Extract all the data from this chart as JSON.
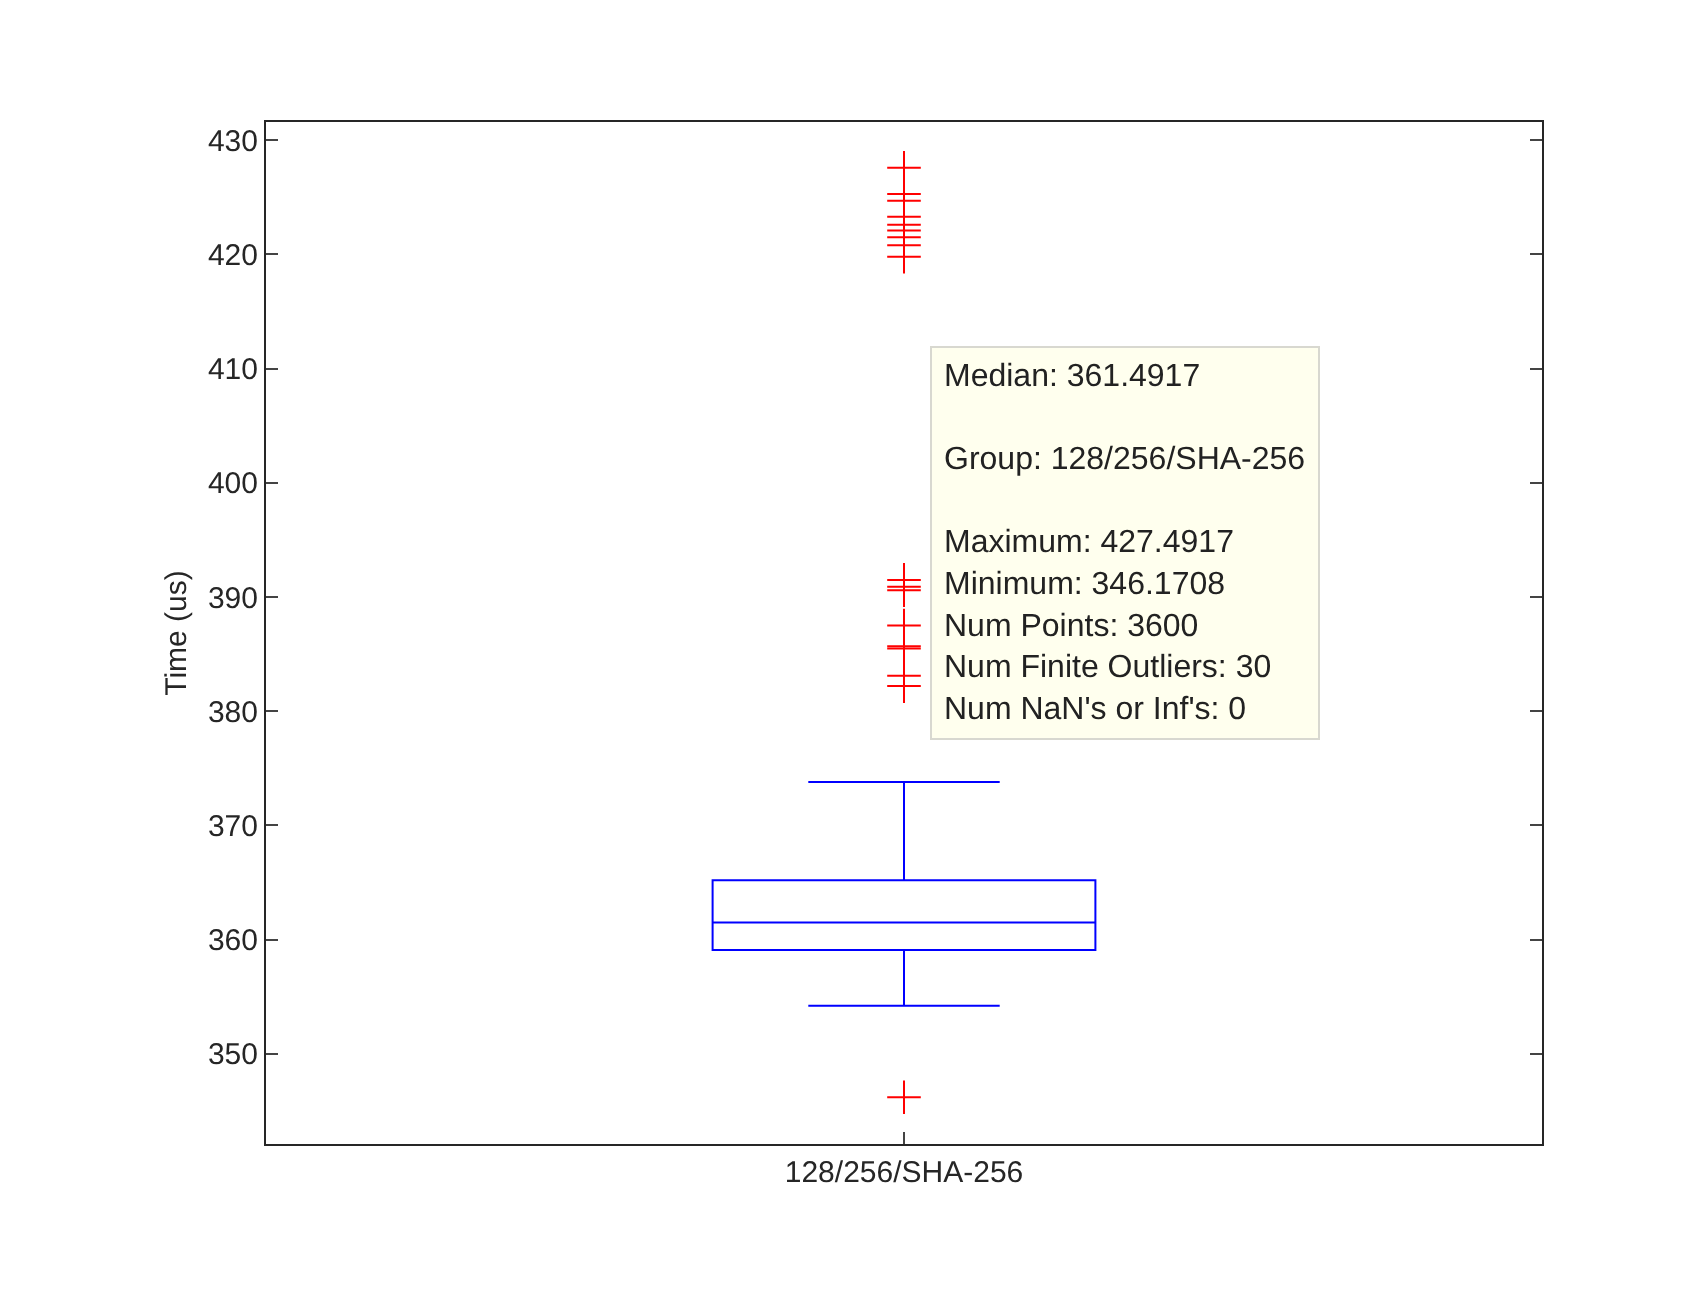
{
  "chart_data": {
    "type": "box",
    "ylabel": "Time (us)",
    "categories": [
      "128/256/SHA-256"
    ],
    "boxes": [
      {
        "low": 354.2,
        "q1": 359.1,
        "median": 361.5,
        "q3": 365.2,
        "high": 373.8
      }
    ],
    "color": "#0000ff",
    "series": [
      {
        "type": "scatter",
        "color": "#ff0000",
        "x": [
          "128/256/SHA-256",
          "128/256/SHA-256",
          "128/256/SHA-256",
          "128/256/SHA-256",
          "128/256/SHA-256",
          "128/256/SHA-256",
          "128/256/SHA-256",
          "128/256/SHA-256",
          "128/256/SHA-256",
          "128/256/SHA-256",
          "128/256/SHA-256",
          "128/256/SHA-256",
          "128/256/SHA-256",
          "128/256/SHA-256",
          "128/256/SHA-256",
          "128/256/SHA-256",
          "128/256/SHA-256",
          "128/256/SHA-256"
        ],
        "values": [
          346.2,
          382.2,
          383.1,
          385.5,
          385.7,
          387.5,
          390.6,
          390.9,
          391.5,
          419.8,
          420.8,
          421.5,
          422.1,
          422.6,
          423.3,
          424.7,
          425.3,
          427.6
        ]
      }
    ],
    "ylim": [
      342.1,
      431.6
    ],
    "yticks": [
      350,
      360,
      370,
      380,
      390,
      400,
      410,
      420,
      430
    ],
    "grid": false,
    "marker": "cross",
    "annotations": [
      "Median: 361.4917",
      "Group: 128/256/SHA-256",
      "Maximum: 427.4917",
      "Minimum: 346.1708",
      "Num Points: 3600",
      "Num Finite Outliers: 30",
      "Num NaN's or Inf's: 0"
    ]
  }
}
